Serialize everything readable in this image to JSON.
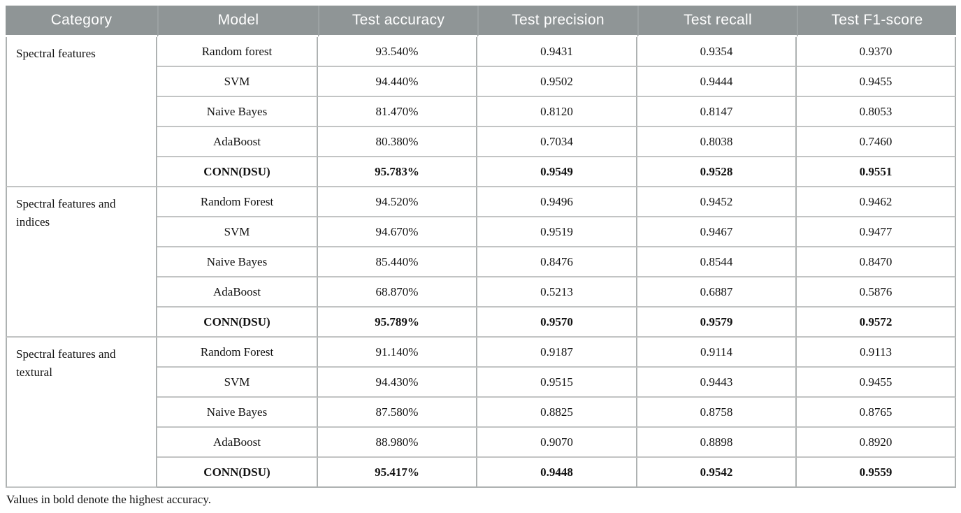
{
  "table": {
    "columns": [
      "Category",
      "Model",
      "Test accuracy",
      "Test precision",
      "Test recall",
      "Test F1-score"
    ],
    "groups": [
      {
        "category": "Spectral features",
        "rows": [
          {
            "model": "Random forest",
            "accuracy": "93.540%",
            "precision": "0.9431",
            "recall": "0.9354",
            "f1": "0.9370",
            "bold": false
          },
          {
            "model": "SVM",
            "accuracy": "94.440%",
            "precision": "0.9502",
            "recall": "0.9444",
            "f1": "0.9455",
            "bold": false
          },
          {
            "model": "Naive Bayes",
            "accuracy": "81.470%",
            "precision": "0.8120",
            "recall": "0.8147",
            "f1": "0.8053",
            "bold": false
          },
          {
            "model": "AdaBoost",
            "accuracy": "80.380%",
            "precision": "0.7034",
            "recall": "0.8038",
            "f1": "0.7460",
            "bold": false
          },
          {
            "model": "CONN(DSU)",
            "accuracy": "95.783%",
            "precision": "0.9549",
            "recall": "0.9528",
            "f1": "0.9551",
            "bold": true
          }
        ]
      },
      {
        "category": "Spectral features and indices",
        "rows": [
          {
            "model": "Random Forest",
            "accuracy": "94.520%",
            "precision": "0.9496",
            "recall": "0.9452",
            "f1": "0.9462",
            "bold": false
          },
          {
            "model": "SVM",
            "accuracy": "94.670%",
            "precision": "0.9519",
            "recall": "0.9467",
            "f1": "0.9477",
            "bold": false
          },
          {
            "model": "Naive Bayes",
            "accuracy": "85.440%",
            "precision": "0.8476",
            "recall": "0.8544",
            "f1": "0.8470",
            "bold": false
          },
          {
            "model": "AdaBoost",
            "accuracy": "68.870%",
            "precision": "0.5213",
            "recall": "0.6887",
            "f1": "0.5876",
            "bold": false
          },
          {
            "model": "CONN(DSU)",
            "accuracy": "95.789%",
            "precision": "0.9570",
            "recall": "0.9579",
            "f1": "0.9572",
            "bold": true
          }
        ]
      },
      {
        "category": "Spectral features and textural",
        "rows": [
          {
            "model": "Random Forest",
            "accuracy": "91.140%",
            "precision": "0.9187",
            "recall": "0.9114",
            "f1": "0.9113",
            "bold": false
          },
          {
            "model": "SVM",
            "accuracy": "94.430%",
            "precision": "0.9515",
            "recall": "0.9443",
            "f1": "0.9455",
            "bold": false
          },
          {
            "model": "Naive Bayes",
            "accuracy": "87.580%",
            "precision": "0.8825",
            "recall": "0.8758",
            "f1": "0.8765",
            "bold": false
          },
          {
            "model": "AdaBoost",
            "accuracy": "88.980%",
            "precision": "0.9070",
            "recall": "0.8898",
            "f1": "0.8920",
            "bold": false
          },
          {
            "model": "CONN(DSU)",
            "accuracy": "95.417%",
            "precision": "0.9448",
            "recall": "0.9542",
            "f1": "0.9559",
            "bold": true
          }
        ]
      }
    ],
    "footnote": "Values in bold denote the highest accuracy.",
    "colors": {
      "header_bg": "#8f9596",
      "header_text": "#ffffff",
      "border_vertical": "#aeb2b2",
      "border_horizontal": "#c2c4c4",
      "body_text": "#111111"
    }
  }
}
